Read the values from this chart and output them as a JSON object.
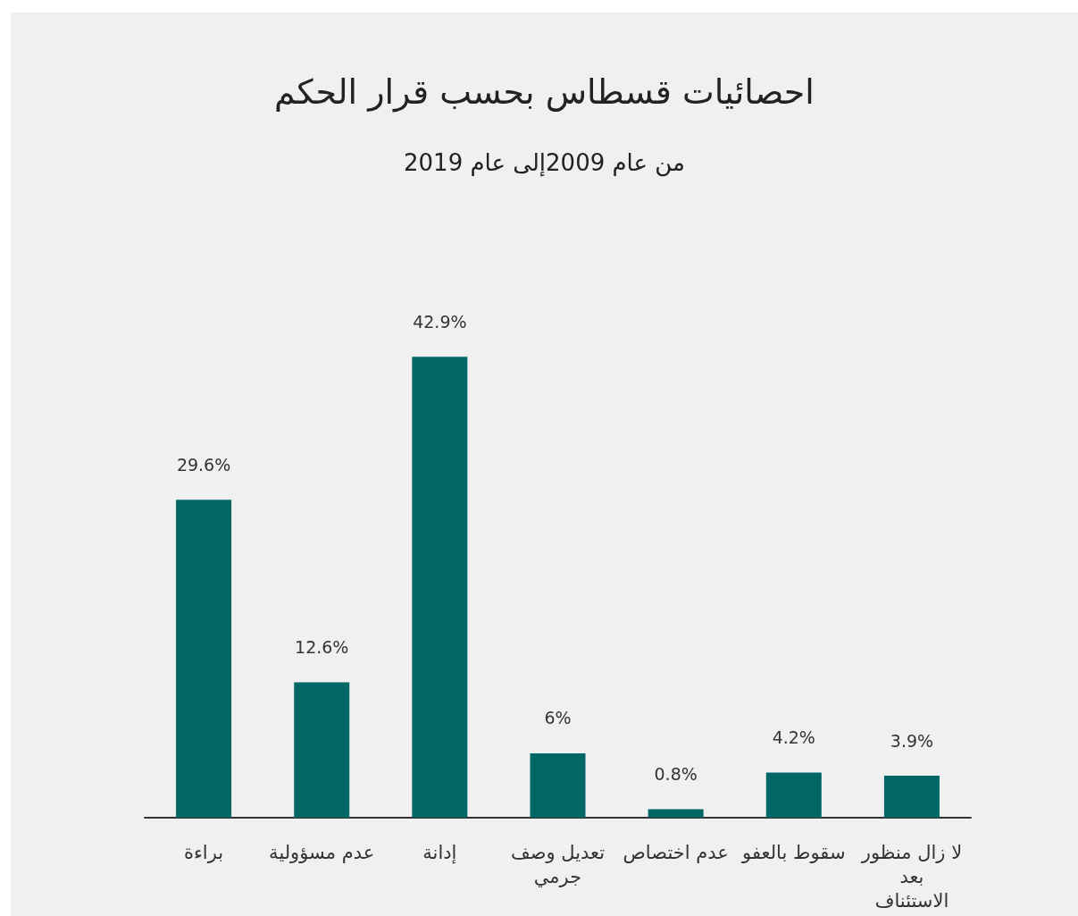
{
  "chart_data": {
    "type": "bar",
    "title": "احصائيات قسطاس بحسب قرار الحكم",
    "subtitle": "من عام 2009إلى عام 2019",
    "categories": [
      "براءة",
      "عدم مسؤولية",
      "إدانة",
      "تعديل وصف جرمي",
      "عدم اختصاص",
      "سقوط بالعفو",
      "لا زال منظور بعد الاستئناف"
    ],
    "values": [
      29.6,
      12.6,
      42.9,
      6,
      0.8,
      4.2,
      3.9
    ],
    "value_labels": [
      "29.6%",
      "12.6%",
      "42.9%",
      "6%",
      "0.8%",
      "4.2%",
      "3.9%"
    ],
    "color": "#006766"
  }
}
